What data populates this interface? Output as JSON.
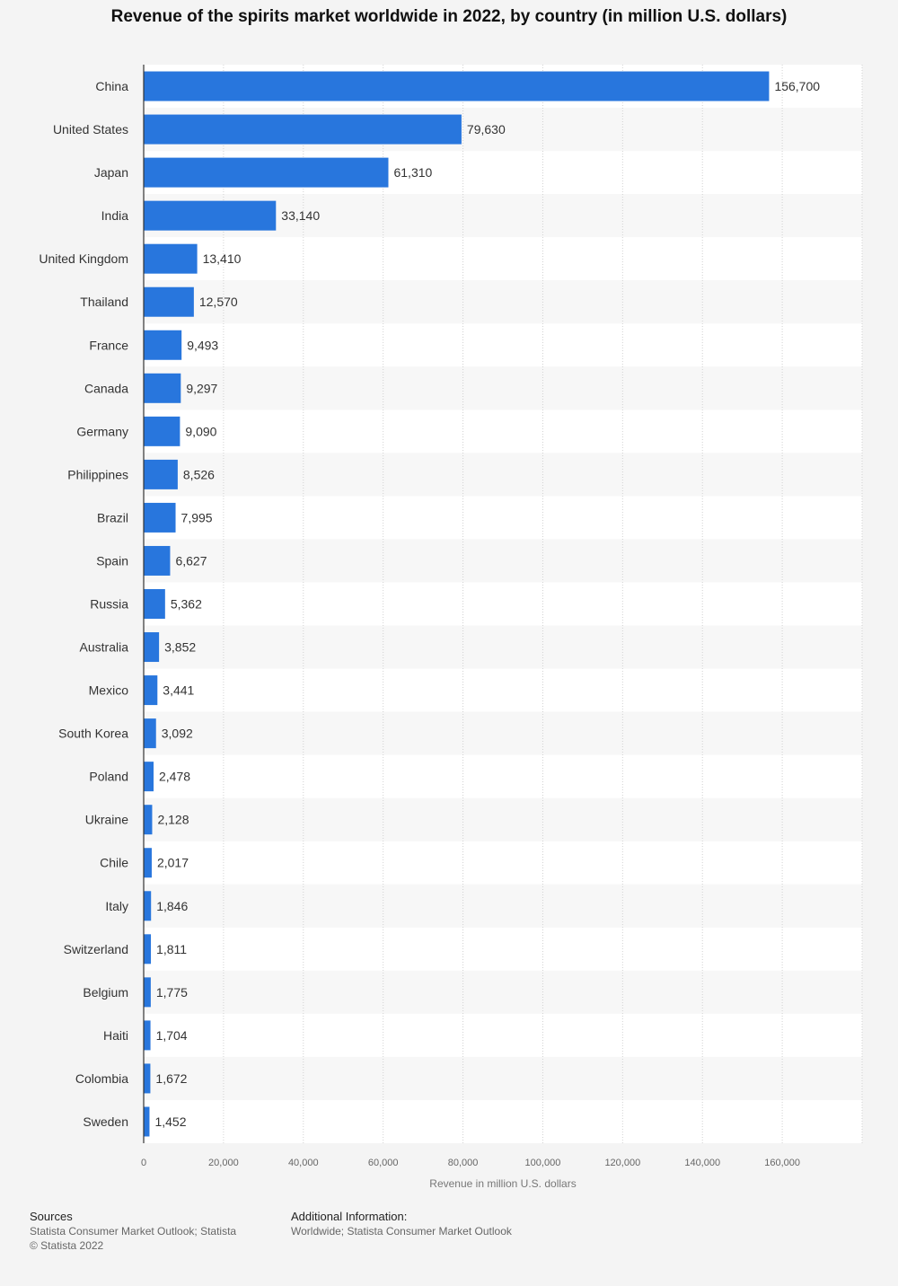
{
  "title": "Revenue of the spirits market worldwide in 2022, by country (in million U.S. dollars)",
  "chart_data": {
    "type": "bar",
    "orientation": "horizontal",
    "title": "Revenue of the spirits market worldwide in 2022, by country (in million U.S. dollars)",
    "xlabel": "Revenue in million U.S. dollars",
    "ylabel": "",
    "xlim": [
      0,
      180000
    ],
    "xticks": [
      0,
      20000,
      40000,
      60000,
      80000,
      100000,
      120000,
      140000,
      160000
    ],
    "xtick_labels": [
      "0",
      "20,000",
      "40,000",
      "60,000",
      "80,000",
      "100,000",
      "120,000",
      "140,000",
      "160,000"
    ],
    "grid": true,
    "bar_color": "#2876dd",
    "categories": [
      "China",
      "United States",
      "Japan",
      "India",
      "United Kingdom",
      "Thailand",
      "France",
      "Canada",
      "Germany",
      "Philippines",
      "Brazil",
      "Spain",
      "Russia",
      "Australia",
      "Mexico",
      "South Korea",
      "Poland",
      "Ukraine",
      "Chile",
      "Italy",
      "Switzerland",
      "Belgium",
      "Haiti",
      "Colombia",
      "Sweden"
    ],
    "values": [
      156700,
      79630,
      61310,
      33140,
      13410,
      12570,
      9493,
      9297,
      9090,
      8526,
      7995,
      6627,
      5362,
      3852,
      3441,
      3092,
      2478,
      2128,
      2017,
      1846,
      1811,
      1775,
      1704,
      1672,
      1452
    ],
    "value_labels": [
      "156,700",
      "79,630",
      "61,310",
      "33,140",
      "13,410",
      "12,570",
      "9,493",
      "9,297",
      "9,090",
      "8,526",
      "7,995",
      "6,627",
      "5,362",
      "3,852",
      "3,441",
      "3,092",
      "2,478",
      "2,128",
      "2,017",
      "1,846",
      "1,811",
      "1,775",
      "1,704",
      "1,672",
      "1,452"
    ]
  },
  "footer": {
    "sources_heading": "Sources",
    "sources_text": "Statista Consumer Market Outlook; Statista",
    "copyright": "© Statista 2022",
    "additional_heading": "Additional Information:",
    "additional_text": "Worldwide; Statista Consumer Market Outlook"
  }
}
